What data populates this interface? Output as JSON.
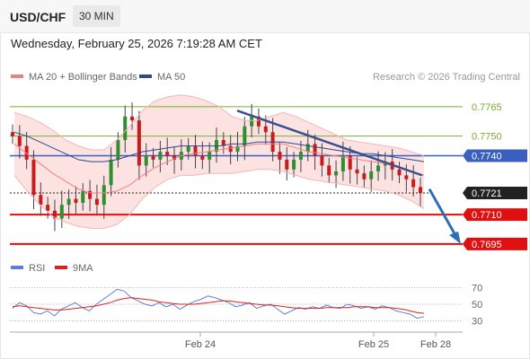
{
  "header": {
    "symbol": "USD/CHF",
    "timeframe": "30 MIN"
  },
  "datetime": "Wednesday, February 25, 2026 7:19:28 AM CET",
  "legend": [
    {
      "label": "MA 20 + Bollinger Bands",
      "color": "#f08080"
    },
    {
      "label": "MA 50",
      "color": "#2e4a8f"
    }
  ],
  "credit": "Research © 2026 Trading Central",
  "rsi_legend": [
    {
      "label": "RSI",
      "color": "#5b7fd9"
    },
    {
      "label": "9MA",
      "color": "#e02020"
    }
  ],
  "chart_data": {
    "type": "line",
    "ylim": [
      0.7689,
      0.7775
    ],
    "x_ticks": [
      "Feb 24",
      "Feb 25",
      "Feb 28"
    ],
    "resistance_lines": [
      {
        "value": 0.7765,
        "label": "0.7765",
        "color": "#7aad36"
      },
      {
        "value": 0.775,
        "label": "0.7750",
        "color": "#7aad36"
      }
    ],
    "pivot_line": {
      "value": 0.774,
      "label": "0.7740",
      "color": "#3a5fbf"
    },
    "last_price": {
      "value": 0.7721,
      "label": "0.7721",
      "color": "#222222"
    },
    "support_lines": [
      {
        "value": 0.771,
        "label": "0.7710",
        "color": "#e01010"
      },
      {
        "value": 0.7695,
        "label": "0.7695",
        "color": "#e01010"
      }
    ],
    "series": [
      {
        "type": "candlestick",
        "values": [
          0.775,
          0.7745,
          0.7738,
          0.772,
          0.7715,
          0.7712,
          0.7708,
          0.7715,
          0.7718,
          0.7716,
          0.7722,
          0.7718,
          0.7715,
          0.7725,
          0.7738,
          0.7748,
          0.776,
          0.7758,
          0.7735,
          0.774,
          0.7738,
          0.7742,
          0.774,
          0.7738,
          0.7742,
          0.7745,
          0.774,
          0.7738,
          0.7742,
          0.7748,
          0.7745,
          0.7742,
          0.7745,
          0.7755,
          0.776,
          0.7755,
          0.7752,
          0.7742,
          0.7738,
          0.7733,
          0.7738,
          0.7742,
          0.7746,
          0.774,
          0.7735,
          0.773,
          0.7732,
          0.774,
          0.7733,
          0.7731,
          0.7728,
          0.7732,
          0.7735,
          0.7737,
          0.7733,
          0.773,
          0.7728,
          0.7724,
          0.7721
        ]
      },
      {
        "name": "MA 20",
        "values": [
          0.7746,
          0.7741,
          0.7736,
          0.7731,
          0.7727,
          0.7723,
          0.7721,
          0.7721,
          0.7722,
          0.7725,
          0.773,
          0.7734,
          0.7737,
          0.774,
          0.7741,
          0.7742,
          0.7743,
          0.7744,
          0.7745,
          0.7746,
          0.7746,
          0.7746,
          0.7744,
          0.7742,
          0.7741,
          0.774,
          0.7739,
          0.7738,
          0.7737,
          0.7736,
          0.7734,
          0.7732,
          0.773
        ]
      },
      {
        "name": "Bollinger upper",
        "values": [
          0.7762,
          0.776,
          0.7757,
          0.7753,
          0.7748,
          0.7745,
          0.7743,
          0.7743,
          0.7748,
          0.7755,
          0.7763,
          0.7768,
          0.777,
          0.7771,
          0.777,
          0.7768,
          0.7765,
          0.776,
          0.7758,
          0.7758,
          0.776,
          0.7762,
          0.776,
          0.7757,
          0.7754,
          0.7751,
          0.7748,
          0.7747,
          0.7746,
          0.7745,
          0.7744,
          0.7742,
          0.774
        ]
      },
      {
        "name": "Bollinger lower",
        "values": [
          0.773,
          0.7722,
          0.7715,
          0.7709,
          0.7706,
          0.7704,
          0.7703,
          0.7703,
          0.7705,
          0.771,
          0.7718,
          0.7724,
          0.7728,
          0.773,
          0.773,
          0.7731,
          0.7731,
          0.7731,
          0.7732,
          0.7733,
          0.7733,
          0.7732,
          0.773,
          0.7728,
          0.7727,
          0.7726,
          0.7725,
          0.7724,
          0.7723,
          0.7722,
          0.772,
          0.7717,
          0.7713
        ]
      },
      {
        "name": "MA 50",
        "values": [
          0.7752,
          0.775,
          0.7747,
          0.7744,
          0.7741,
          0.7738,
          0.7737,
          0.7737,
          0.7738,
          0.774,
          0.7742,
          0.7743,
          0.7744,
          0.7745,
          0.7745,
          0.7745,
          0.7745,
          0.7746,
          0.7746,
          0.7747,
          0.7747,
          0.7747,
          0.7746,
          0.7745,
          0.7744,
          0.7743,
          0.7742,
          0.7741,
          0.7741,
          0.774,
          0.7739,
          0.7738,
          0.7737
        ]
      }
    ],
    "trendline": {
      "from": 0.7763,
      "to": 0.773,
      "color": "#3a4f8f"
    },
    "projection": {
      "from": 0.7723,
      "to": 0.7695,
      "color": "#2c6fb5"
    },
    "rsi": {
      "ylim": [
        25,
        75
      ],
      "ticks": [
        70,
        50,
        30
      ],
      "rsi_values": [
        45,
        52,
        48,
        40,
        38,
        42,
        36,
        44,
        48,
        52,
        46,
        42,
        50,
        56,
        62,
        68,
        66,
        58,
        54,
        50,
        48,
        52,
        47,
        50,
        44,
        49,
        53,
        56,
        60,
        58,
        55,
        52,
        47,
        49,
        52,
        45,
        48,
        50,
        44,
        38,
        42,
        46,
        44,
        47,
        45,
        49,
        46,
        45,
        50,
        48,
        45,
        47,
        44,
        48,
        46,
        42,
        40,
        38,
        33,
        35
      ],
      "ma_values": [
        47,
        48,
        47,
        46,
        45,
        44,
        43,
        43,
        44,
        45,
        46,
        47,
        48,
        50,
        52,
        55,
        57,
        58,
        57,
        56,
        55,
        53,
        52,
        51,
        50,
        50,
        50,
        51,
        52,
        53,
        54,
        54,
        53,
        52,
        51,
        50,
        49,
        49,
        48,
        47,
        46,
        45,
        45,
        45,
        45,
        46,
        46,
        46,
        46,
        47,
        47,
        47,
        46,
        46,
        46,
        45,
        44,
        42,
        40,
        39
      ]
    }
  }
}
